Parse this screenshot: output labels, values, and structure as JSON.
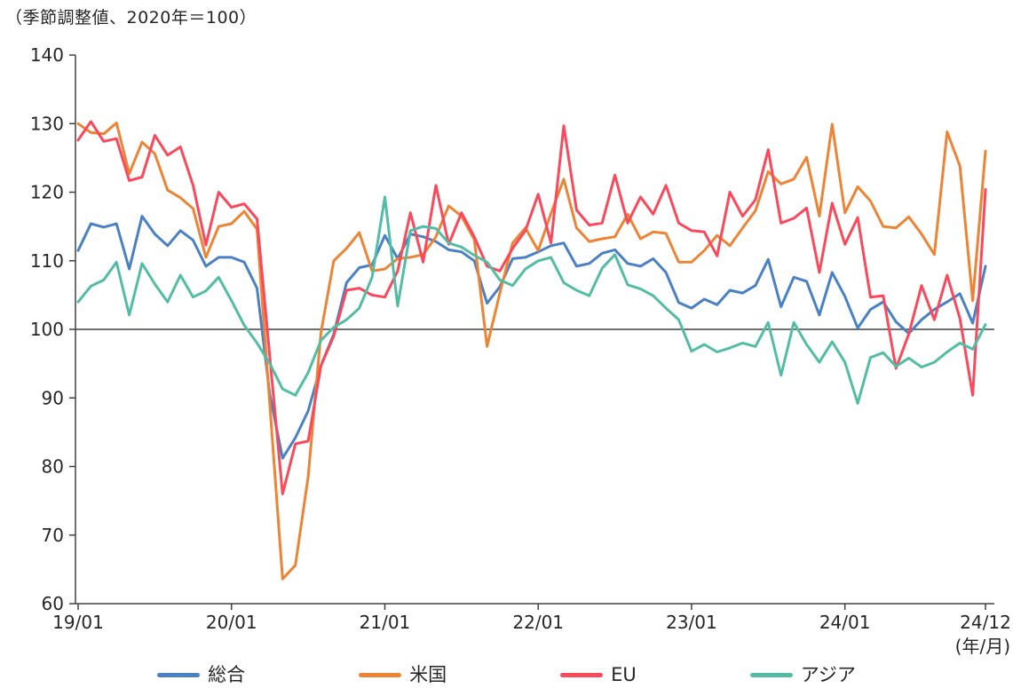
{
  "title": "（季節調整値、2020年＝100）",
  "x_axis_unit_label": "(年/月)",
  "axis_color": "#404040",
  "text_color": "#262626",
  "chart_data": {
    "type": "line",
    "title": "（季節調整値、2020年＝100）",
    "x_start": "19/01",
    "x_end": "24/12",
    "frequency": "monthly",
    "n_points": 72,
    "ylim": [
      60,
      140
    ],
    "y_tick_labels": [
      "60",
      "70",
      "80",
      "90",
      "100",
      "110",
      "120",
      "130",
      "140"
    ],
    "x_tick_labels": [
      "19/01",
      "20/01",
      "21/01",
      "22/01",
      "23/01",
      "24/01",
      "24/12"
    ],
    "x_tick_indices": [
      0,
      12,
      24,
      36,
      48,
      60,
      71
    ],
    "grid": "off",
    "reference_line": 100,
    "legend_position": "bottom",
    "series": [
      {
        "id": "sogo",
        "name": "総合",
        "color": "#4A80C4",
        "values": [
          111.5,
          115.4,
          114.9,
          115.4,
          108.8,
          116.5,
          113.9,
          112.2,
          114.4,
          113.0,
          109.2,
          110.5,
          110.5,
          109.8,
          106.0,
          90.5,
          81.2,
          84.2,
          88.1,
          94.7,
          99.3,
          106.8,
          109.0,
          109.4,
          113.7,
          110.3,
          113.9,
          113.5,
          112.8,
          111.6,
          111.3,
          110.0,
          103.8,
          106.2,
          110.3,
          110.5,
          111.3,
          112.2,
          112.6,
          109.2,
          109.6,
          111.1,
          111.6,
          109.6,
          109.2,
          110.3,
          108.3,
          103.9,
          103.1,
          104.4,
          103.6,
          105.7,
          105.3,
          106.4,
          110.2,
          103.3,
          107.6,
          107.0,
          102.1,
          108.3,
          104.8,
          100.2,
          102.9,
          104.0,
          101.1,
          99.4,
          101.4,
          102.9,
          104.0,
          105.2,
          100.9,
          109.2
        ]
      },
      {
        "id": "us",
        "name": "米国",
        "color": "#ED8435",
        "values": [
          130.0,
          128.7,
          128.5,
          130.1,
          122.7,
          127.3,
          125.6,
          120.3,
          119.2,
          117.6,
          110.5,
          115.0,
          115.4,
          117.2,
          114.6,
          89.0,
          63.6,
          65.6,
          78.5,
          99.5,
          110.0,
          111.8,
          114.1,
          108.5,
          108.8,
          110.3,
          110.5,
          110.9,
          113.5,
          118.0,
          116.5,
          113.1,
          97.5,
          105.3,
          112.6,
          114.8,
          111.5,
          116.9,
          121.9,
          114.8,
          112.8,
          113.2,
          113.5,
          116.8,
          113.2,
          114.2,
          114.0,
          109.8,
          109.8,
          111.5,
          113.7,
          112.2,
          114.8,
          117.3,
          123.0,
          121.2,
          121.9,
          125.1,
          116.5,
          129.9,
          117.0,
          120.8,
          118.7,
          115.0,
          114.8,
          116.4,
          113.9,
          110.9,
          128.8,
          123.8,
          104.2,
          126.0
        ]
      },
      {
        "id": "eu",
        "name": "EU",
        "color": "#F9495A",
        "values": [
          127.6,
          130.3,
          127.4,
          127.8,
          121.7,
          122.2,
          128.3,
          125.4,
          126.6,
          121.0,
          112.3,
          120.0,
          117.8,
          118.3,
          116.1,
          96.0,
          76.0,
          83.3,
          83.7,
          94.7,
          99.0,
          105.7,
          106.0,
          105.0,
          104.7,
          108.5,
          117.0,
          109.8,
          121.0,
          112.4,
          117.0,
          113.5,
          109.2,
          108.5,
          111.8,
          114.4,
          119.7,
          112.6,
          129.7,
          117.4,
          115.2,
          115.5,
          122.5,
          115.5,
          119.3,
          116.8,
          121.0,
          115.5,
          114.4,
          114.2,
          110.7,
          120.0,
          116.5,
          118.9,
          126.2,
          115.5,
          116.2,
          117.7,
          108.3,
          118.4,
          112.4,
          116.3,
          104.7,
          104.9,
          94.3,
          99.3,
          106.4,
          101.4,
          107.9,
          101.6,
          90.4,
          120.4
        ]
      },
      {
        "id": "asia",
        "name": "アジア",
        "color": "#52BDA4",
        "values": [
          104.0,
          106.3,
          107.2,
          109.8,
          102.1,
          109.6,
          106.6,
          104.0,
          107.9,
          104.7,
          105.6,
          107.6,
          104.2,
          100.6,
          98.0,
          95.0,
          91.3,
          90.4,
          93.7,
          98.4,
          100.3,
          101.4,
          103.1,
          107.6,
          119.3,
          103.4,
          114.4,
          115.0,
          114.7,
          112.6,
          112.0,
          110.8,
          109.8,
          107.2,
          106.4,
          108.8,
          110.0,
          110.5,
          106.8,
          105.7,
          104.9,
          108.9,
          110.9,
          106.5,
          105.9,
          104.9,
          103.1,
          101.4,
          96.8,
          97.8,
          96.7,
          97.3,
          98.0,
          97.5,
          101.0,
          93.3,
          101.0,
          97.8,
          95.2,
          98.2,
          95.2,
          89.2,
          95.9,
          96.6,
          94.6,
          95.8,
          94.5,
          95.2,
          96.7,
          98.0,
          97.1,
          100.7
        ]
      }
    ]
  }
}
